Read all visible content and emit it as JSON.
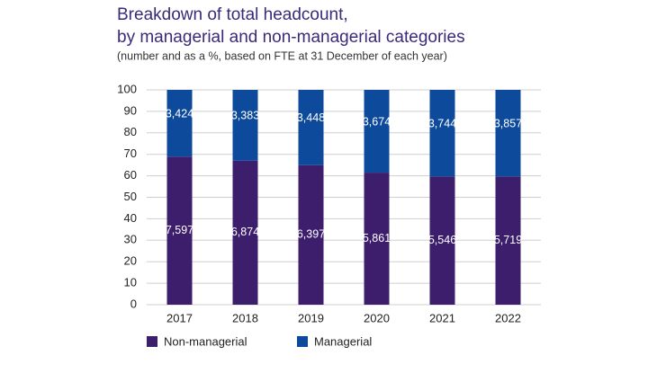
{
  "chart_data": {
    "type": "bar",
    "stacking": "percent",
    "title": "Breakdown of total headcount,",
    "title_line2": "by managerial and non-managerial categories",
    "subtitle": "(number and as a %, based on FTE at 31 December of each year)",
    "categories": [
      "2017",
      "2018",
      "2019",
      "2020",
      "2021",
      "2022"
    ],
    "series": [
      {
        "name": "Non-managerial",
        "color": "#3d1e6d",
        "values": [
          7597,
          6874,
          6397,
          5861,
          5546,
          5719
        ],
        "value_labels": [
          "7,597",
          "6,874",
          "6,397",
          "5,861",
          "5,546",
          "5,719"
        ]
      },
      {
        "name": "Managerial",
        "color": "#0d4a9b",
        "values": [
          3424,
          3383,
          3448,
          3674,
          3744,
          3857
        ],
        "value_labels": [
          "3,424",
          "3,383",
          "3,448",
          "3,674",
          "3,744",
          "3,857"
        ]
      }
    ],
    "ylim": [
      0,
      100
    ],
    "yticks": [
      0,
      10,
      20,
      30,
      40,
      50,
      60,
      70,
      80,
      90,
      100
    ],
    "grid": true,
    "legend": "bottom"
  }
}
